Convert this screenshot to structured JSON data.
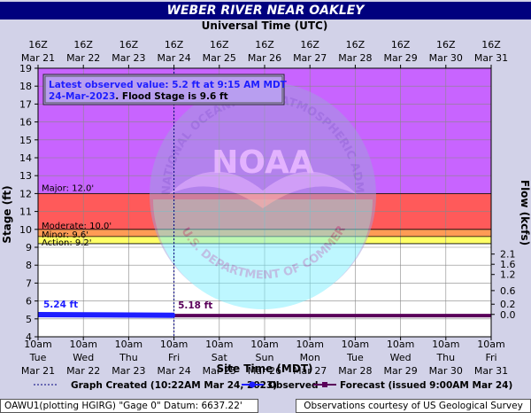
{
  "header": {
    "title": "WEBER RIVER NEAR OAKLEY"
  },
  "top_axis": {
    "title": "Universal Time (UTC)",
    "ticks": [
      {
        "top": "16Z",
        "bottom": "Mar 21"
      },
      {
        "top": "16Z",
        "bottom": "Mar 22"
      },
      {
        "top": "16Z",
        "bottom": "Mar 23"
      },
      {
        "top": "16Z",
        "bottom": "Mar 24"
      },
      {
        "top": "16Z",
        "bottom": "Mar 25"
      },
      {
        "top": "16Z",
        "bottom": "Mar 26"
      },
      {
        "top": "16Z",
        "bottom": "Mar 27"
      },
      {
        "top": "16Z",
        "bottom": "Mar 28"
      },
      {
        "top": "16Z",
        "bottom": "Mar 29"
      },
      {
        "top": "16Z",
        "bottom": "Mar 30"
      },
      {
        "top": "16Z",
        "bottom": "Mar 31"
      }
    ]
  },
  "bottom_axis": {
    "title": "Site Time (MDT)",
    "ticks": [
      {
        "time": "10am",
        "day": "Tue",
        "date": "Mar 21"
      },
      {
        "time": "10am",
        "day": "Wed",
        "date": "Mar 22"
      },
      {
        "time": "10am",
        "day": "Thu",
        "date": "Mar 23"
      },
      {
        "time": "10am",
        "day": "Fri",
        "date": "Mar 24"
      },
      {
        "time": "10am",
        "day": "Sat",
        "date": "Mar 25"
      },
      {
        "time": "10am",
        "day": "Sun",
        "date": "Mar 26"
      },
      {
        "time": "10am",
        "day": "Mon",
        "date": "Mar 27"
      },
      {
        "time": "10am",
        "day": "Tue",
        "date": "Mar 28"
      },
      {
        "time": "10am",
        "day": "Wed",
        "date": "Mar 29"
      },
      {
        "time": "10am",
        "day": "Thu",
        "date": "Mar 30"
      },
      {
        "time": "10am",
        "day": "Fri",
        "date": "Mar 31"
      }
    ]
  },
  "info_box": {
    "line1": "Latest observed value: 5.2 ft at 9:15 AM MDT",
    "line2_date": "24-Mar-2023",
    "line2_rest": ". Flood Stage is 9.6 ft"
  },
  "legend": {
    "graph_created": "Graph Created (10:22AM Mar 24, 2023)",
    "observed": "Observed",
    "forecast": "Forecast (issued 9:00AM Mar 24)"
  },
  "footer": {
    "left": "OAWU1(plotting HGIRG) \"Gage 0\" Datum: 6637.22'",
    "right": "Observations courtesy of US Geological Survey"
  },
  "watermark": {
    "arc_text": "NATIONAL OCEANIC AND ATMOSPHERIC ADMINISTRATION",
    "center_text": "NOAA",
    "bottom_text": "U.S. DEPARTMENT OF COMMERCE"
  },
  "colors": {
    "major": "#c864ff",
    "moderate_band": "#ff5a5a",
    "minor_band": "#ff9b55",
    "action_band": "#ffff66",
    "normal": "#ffffff",
    "observed": "#1e1eff",
    "forecast": "#5a005a",
    "title_bar": "#00007e"
  },
  "chart_data": {
    "type": "line",
    "title": "WEBER RIVER NEAR OAKLEY",
    "xlabel": "Site Time (MDT)",
    "x2label": "Universal Time (UTC)",
    "ylabel": "Stage (ft)",
    "y2label": "Flow (kcfs)",
    "x_range": [
      "Mar 21 10am",
      "Mar 31 10am"
    ],
    "ylim": [
      4,
      19
    ],
    "yticks": [
      "4",
      "5",
      "6",
      "7",
      "8",
      "9",
      "10",
      "11",
      "12",
      "13",
      "14",
      "15",
      "16",
      "17",
      "18",
      "19"
    ],
    "y2_ticks": [
      {
        "label": "0.0",
        "stage": 5.25
      },
      {
        "label": "0.2",
        "stage": 5.82
      },
      {
        "label": "0.6",
        "stage": 6.58
      },
      {
        "label": "1.2",
        "stage": 7.48
      },
      {
        "label": "1.6",
        "stage": 8.05
      },
      {
        "label": "2.1",
        "stage": 8.62
      }
    ],
    "flood_categories": [
      {
        "name": "Major",
        "label": "Major: 12.0'",
        "stage": 12.0
      },
      {
        "name": "Moderate",
        "label": "Moderate: 10.0'",
        "stage": 10.0
      },
      {
        "name": "Minor",
        "label": "Minor: 9.6'",
        "stage": 9.6
      },
      {
        "name": "Action",
        "label": "Action: 9.2'",
        "stage": 9.2
      }
    ],
    "series": [
      {
        "name": "Observed",
        "label": "5.24 ft",
        "x_days": [
          0,
          2.97
        ],
        "values": [
          5.24,
          5.2
        ]
      },
      {
        "name": "Forecast",
        "label": "5.18 ft",
        "x_days": [
          2.97,
          10
        ],
        "values": [
          5.18,
          5.18
        ]
      }
    ],
    "graph_created_x_days": 3.0,
    "grid": true
  }
}
